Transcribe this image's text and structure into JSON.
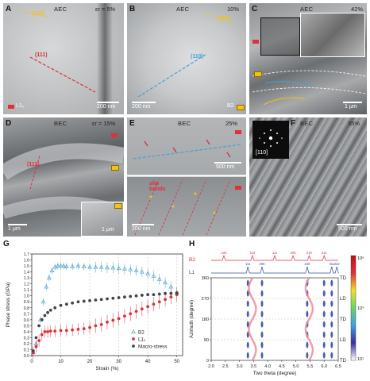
{
  "panels": [
    {
      "id": "A",
      "phase": "AEC",
      "strain": "εr = 5%",
      "annotation": "(111)",
      "annotation2": "(110)",
      "scale": "200 nm",
      "legend": "L1₂",
      "legend_color": "#e0303a"
    },
    {
      "id": "B",
      "phase": "AEC",
      "strain": "10%",
      "annotation": "(110)",
      "annotation2": "(110)",
      "scale": "200 nm",
      "legend": "B2",
      "legend_color": "#f2c316"
    },
    {
      "id": "C",
      "phase": "AEC",
      "strain": "42%",
      "scale": "1 μm"
    },
    {
      "id": "D",
      "phase": "BEC",
      "strain": "εr = 15%",
      "annotation": "(111)",
      "scale": "1 μm",
      "inset_scale": "1 μm"
    },
    {
      "id": "E",
      "phase": "BEC",
      "strain": "25%",
      "scale": "500 nm",
      "scale2": "200 nm",
      "annotation": "slip bands"
    },
    {
      "id": "F",
      "phase": "BEC",
      "strain": "35%",
      "scale": "500 nm",
      "inset_label": "[110]"
    }
  ],
  "chart_data": [
    {
      "id": "G",
      "type": "scatter",
      "xlabel": "Strain (%)",
      "ylabel": "Phase stress (GPa)",
      "xlim": [
        0,
        52
      ],
      "ylim": [
        0,
        1.7
      ],
      "xticks": [
        "0",
        "10",
        "20",
        "30",
        "40",
        "50"
      ],
      "yticks": [
        "0.0",
        "0.1",
        "0.2",
        "0.3",
        "0.4",
        "0.5",
        "0.6",
        "0.7",
        "0.8",
        "0.9",
        "1.0",
        "1.1",
        "1.2",
        "1.3",
        "1.4",
        "1.5",
        "1.6",
        "1.7"
      ],
      "legend_position": "bottom-right",
      "series": [
        {
          "name": "B2",
          "color": "#4a9fd6",
          "marker": "triangle",
          "x": [
            0.5,
            1.5,
            3,
            4,
            5,
            6,
            7,
            8,
            9,
            10,
            11,
            12,
            14,
            16,
            18,
            20,
            22,
            24,
            26,
            28,
            30,
            32,
            34,
            36,
            38,
            40,
            42,
            44,
            46,
            48,
            50
          ],
          "y": [
            0.05,
            0.2,
            0.6,
            0.9,
            1.15,
            1.3,
            1.42,
            1.48,
            1.5,
            1.5,
            1.5,
            1.49,
            1.49,
            1.5,
            1.49,
            1.48,
            1.48,
            1.48,
            1.47,
            1.47,
            1.46,
            1.45,
            1.44,
            1.42,
            1.4,
            1.37,
            1.33,
            1.28,
            1.22,
            1.15,
            1.05
          ]
        },
        {
          "name": "L1₂",
          "color": "#e0303a",
          "marker": "circle",
          "x": [
            0.5,
            1.5,
            2.5,
            3.5,
            4.5,
            5.5,
            6.5,
            8,
            10,
            12,
            14,
            16,
            18,
            20,
            22,
            24,
            26,
            28,
            30,
            32,
            34,
            36,
            38,
            40,
            42,
            44,
            46,
            48,
            50
          ],
          "y": [
            0.05,
            0.15,
            0.25,
            0.35,
            0.4,
            0.4,
            0.41,
            0.41,
            0.42,
            0.42,
            0.43,
            0.44,
            0.45,
            0.47,
            0.5,
            0.52,
            0.56,
            0.59,
            0.62,
            0.66,
            0.7,
            0.74,
            0.78,
            0.82,
            0.86,
            0.9,
            0.94,
            0.98,
            1.02
          ]
        },
        {
          "name": "Macro-stress",
          "color": "#444444",
          "marker": "circle",
          "x": [
            0.5,
            1.5,
            2.5,
            3.5,
            4.5,
            5.5,
            6.5,
            8,
            10,
            12,
            14,
            16,
            18,
            20,
            22,
            24,
            26,
            28,
            30,
            32,
            34,
            36,
            38,
            40,
            42,
            44,
            46,
            48,
            50
          ],
          "y": [
            0.08,
            0.3,
            0.5,
            0.6,
            0.67,
            0.72,
            0.76,
            0.8,
            0.84,
            0.86,
            0.88,
            0.9,
            0.91,
            0.92,
            0.93,
            0.94,
            0.95,
            0.96,
            0.97,
            0.98,
            0.99,
            1.0,
            1.01,
            1.02,
            1.02,
            1.03,
            1.04,
            1.04,
            1.05
          ]
        }
      ]
    },
    {
      "id": "H",
      "type": "heatmap",
      "xlabel": "Two theta (degree)",
      "ylabel": "Azimuth (degree)",
      "xlim": [
        2.0,
        6.5
      ],
      "ylim": [
        0,
        360
      ],
      "xticks": [
        "2.0",
        "2.5",
        "3.0",
        "3.5",
        "4.0",
        "4.5",
        "5.0",
        "5.5",
        "6.0",
        "6.5"
      ],
      "yticks": [
        "0",
        "90",
        "180",
        "270",
        "360"
      ],
      "side_labels": [
        "TD",
        "LD",
        "TD",
        "LD",
        "TD"
      ],
      "top_traces": [
        {
          "name": "B2",
          "color": "#e0303a",
          "peaks": [
            {
              "pos": 2.45,
              "hkl": "100"
            },
            {
              "pos": 3.46,
              "hkl": "110"
            },
            {
              "pos": 4.25,
              "hkl": "111"
            },
            {
              "pos": 4.9,
              "hkl": "200"
            },
            {
              "pos": 5.47,
              "hkl": "210"
            },
            {
              "pos": 6.0,
              "hkl": "211"
            }
          ]
        },
        {
          "name": "L1",
          "color": "#2b4fa8",
          "peaks": [
            {
              "pos": 3.3,
              "hkl": "111"
            },
            {
              "pos": 3.8,
              "hkl": "200"
            },
            {
              "pos": 5.4,
              "hkl": "220"
            },
            {
              "pos": 6.27,
              "hkl": "311"
            },
            {
              "pos": 6.45,
              "hkl": "222"
            }
          ]
        }
      ],
      "colorbar": {
        "min_label": "10¹",
        "mid_label": "10⁴",
        "max_label": "10⁶",
        "colors": [
          "#ffffff",
          "#3a2fa0",
          "#3fa0e0",
          "#6cd16a",
          "#f0e02a",
          "#e0303a",
          "#c0101a"
        ]
      }
    }
  ]
}
